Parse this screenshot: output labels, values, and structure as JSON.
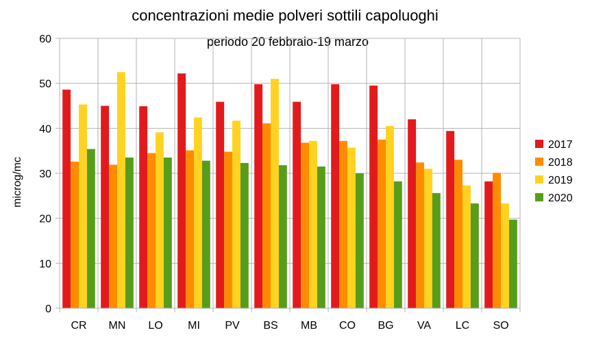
{
  "chart_data": {
    "type": "bar",
    "title": "concentrazioni medie polveri sottili capoluoghi",
    "subtitle": "periodo 20 febbraio-19 marzo",
    "xlabel": "",
    "ylabel": "microg/mc",
    "ylim": [
      0,
      60
    ],
    "yticks": [
      0,
      10,
      20,
      30,
      40,
      50,
      60
    ],
    "grid": true,
    "legend_position": "right",
    "categories": [
      "CR",
      "MN",
      "LO",
      "MI",
      "PV",
      "BS",
      "MB",
      "CO",
      "BG",
      "VA",
      "LC",
      "SO"
    ],
    "series": [
      {
        "name": "2017",
        "color": "#e31a1c",
        "values": [
          48.6,
          45.0,
          44.9,
          52.2,
          45.9,
          49.8,
          45.9,
          49.8,
          49.5,
          42.0,
          39.4,
          28.2
        ]
      },
      {
        "name": "2018",
        "color": "#ff8c00",
        "values": [
          32.6,
          31.9,
          34.5,
          35.1,
          34.8,
          41.1,
          36.8,
          37.2,
          37.5,
          32.4,
          33.0,
          30.1
        ]
      },
      {
        "name": "2019",
        "color": "#ffd320",
        "values": [
          45.3,
          52.5,
          39.1,
          42.4,
          41.7,
          51.0,
          37.2,
          35.7,
          40.5,
          31.0,
          27.3,
          23.3
        ]
      },
      {
        "name": "2020",
        "color": "#579d1c",
        "values": [
          35.4,
          33.5,
          33.5,
          32.8,
          32.3,
          31.8,
          31.5,
          30.0,
          28.2,
          25.6,
          23.3,
          19.7
        ]
      }
    ]
  }
}
